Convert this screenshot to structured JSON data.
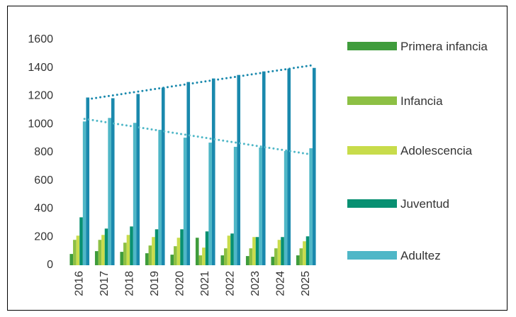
{
  "chart_data": {
    "type": "bar",
    "categories": [
      "2016",
      "2017",
      "2018",
      "2019",
      "2020",
      "2021",
      "2022",
      "2023",
      "2024",
      "2025"
    ],
    "series": [
      {
        "name": "Primera infancia",
        "color": "#3f9c3c",
        "values": [
          80,
          100,
          95,
          85,
          75,
          195,
          70,
          65,
          60,
          70
        ]
      },
      {
        "name": "Infancia",
        "color": "#8dc044",
        "values": [
          180,
          180,
          160,
          140,
          135,
          70,
          120,
          120,
          120,
          120
        ]
      },
      {
        "name": "Adolescencia",
        "color": "#c8dc4b",
        "values": [
          210,
          215,
          215,
          200,
          195,
          125,
          210,
          200,
          180,
          170
        ]
      },
      {
        "name": "Juventud",
        "color": "#089072",
        "values": [
          340,
          260,
          275,
          255,
          255,
          240,
          225,
          200,
          200,
          205
        ]
      },
      {
        "name": "Adultez",
        "color": "#4fb7c7",
        "values": [
          1020,
          1045,
          1010,
          960,
          905,
          870,
          840,
          835,
          810,
          830
        ],
        "trendline": true
      },
      {
        "name": null,
        "color": "#1a89ad",
        "values": [
          1190,
          1185,
          1215,
          1260,
          1300,
          1325,
          1350,
          1375,
          1395,
          1400
        ],
        "trendline": true
      }
    ],
    "ylim": [
      0,
      1600
    ],
    "yticks": [
      0,
      200,
      400,
      600,
      800,
      1000,
      1200,
      1400,
      1600
    ],
    "grid": false
  }
}
